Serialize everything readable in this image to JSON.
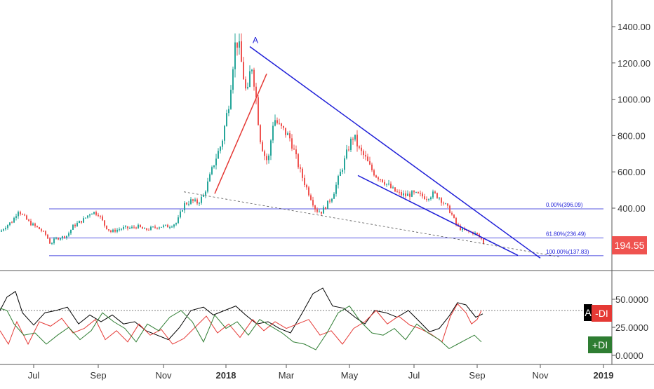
{
  "chart_data": {
    "type": "candlestick",
    "price_panel": {
      "y_ticks": [
        "1400.00",
        "1200.00",
        "1000.00",
        "800.00",
        "600.00",
        "400.00"
      ],
      "y_tick_values": [
        1400,
        1200,
        1000,
        800,
        600,
        400
      ],
      "last_price": "194.55",
      "last_price_value": 194.55,
      "annotation": "A",
      "fib_levels": [
        {
          "label": "0.00%(396.09)",
          "value": 396.09
        },
        {
          "label": "61.80%(236.49)",
          "value": 236.49
        },
        {
          "label": "100.00%(137.83)",
          "value": 137.83
        }
      ],
      "close_path": [
        [
          0,
          270
        ],
        [
          8,
          300
        ],
        [
          18,
          330
        ],
        [
          26,
          390
        ],
        [
          32,
          360
        ],
        [
          42,
          320
        ],
        [
          50,
          300
        ],
        [
          58,
          280
        ],
        [
          66,
          250
        ],
        [
          72,
          200
        ],
        [
          78,
          230
        ],
        [
          88,
          240
        ],
        [
          96,
          250
        ],
        [
          104,
          300
        ],
        [
          112,
          320
        ],
        [
          120,
          340
        ],
        [
          130,
          380
        ],
        [
          140,
          370
        ],
        [
          150,
          300
        ],
        [
          158,
          270
        ],
        [
          166,
          280
        ],
        [
          176,
          290
        ],
        [
          186,
          290
        ],
        [
          196,
          300
        ],
        [
          206,
          280
        ],
        [
          216,
          290
        ],
        [
          228,
          300
        ],
        [
          240,
          300
        ],
        [
          252,
          320
        ],
        [
          262,
          420
        ],
        [
          272,
          440
        ],
        [
          282,
          430
        ],
        [
          290,
          470
        ],
        [
          298,
          560
        ],
        [
          306,
          660
        ],
        [
          316,
          760
        ],
        [
          326,
          980
        ],
        [
          332,
          1200
        ],
        [
          336,
          1330
        ],
        [
          340,
          1300
        ],
        [
          346,
          1150
        ],
        [
          352,
          1000
        ],
        [
          358,
          1210
        ],
        [
          364,
          1050
        ],
        [
          370,
          800
        ],
        [
          376,
          700
        ],
        [
          382,
          650
        ],
        [
          390,
          900
        ],
        [
          398,
          850
        ],
        [
          406,
          820
        ],
        [
          414,
          780
        ],
        [
          420,
          700
        ],
        [
          428,
          600
        ],
        [
          436,
          520
        ],
        [
          444,
          450
        ],
        [
          450,
          390
        ],
        [
          458,
          380
        ],
        [
          466,
          420
        ],
        [
          474,
          470
        ],
        [
          482,
          560
        ],
        [
          490,
          650
        ],
        [
          498,
          750
        ],
        [
          504,
          800
        ],
        [
          512,
          720
        ],
        [
          520,
          680
        ],
        [
          528,
          620
        ],
        [
          536,
          580
        ],
        [
          544,
          560
        ],
        [
          552,
          530
        ],
        [
          560,
          500
        ],
        [
          568,
          480
        ],
        [
          578,
          470
        ],
        [
          588,
          480
        ],
        [
          598,
          470
        ],
        [
          608,
          460
        ],
        [
          618,
          480
        ],
        [
          626,
          460
        ],
        [
          634,
          420
        ],
        [
          642,
          380
        ],
        [
          650,
          310
        ],
        [
          658,
          280
        ],
        [
          668,
          270
        ],
        [
          678,
          260
        ],
        [
          686,
          230
        ],
        [
          690,
          200
        ]
      ]
    },
    "indicator_panel": {
      "y_ticks": [
        "50.0000",
        "25.0000",
        "0.0000"
      ],
      "y_tick_values": [
        50,
        25,
        0
      ],
      "reference_level": 40,
      "series": [
        {
          "name": "A",
          "color": "#000000",
          "values": [
            [
              0,
              40
            ],
            [
              10,
              52
            ],
            [
              22,
              57
            ],
            [
              32,
              38
            ],
            [
              48,
              27
            ],
            [
              64,
              38
            ],
            [
              80,
              40
            ],
            [
              96,
              43
            ],
            [
              112,
              28
            ],
            [
              128,
              36
            ],
            [
              144,
              30
            ],
            [
              160,
              36
            ],
            [
              176,
              28
            ],
            [
              192,
              30
            ],
            [
              208,
              22
            ],
            [
              224,
              18
            ],
            [
              240,
              14
            ],
            [
              256,
              25
            ],
            [
              272,
              40
            ],
            [
              290,
              43
            ],
            [
              304,
              36
            ],
            [
              320,
              40
            ],
            [
              336,
              44
            ],
            [
              350,
              36
            ],
            [
              366,
              28
            ],
            [
              382,
              30
            ],
            [
              398,
              24
            ],
            [
              414,
              20
            ],
            [
              430,
              37
            ],
            [
              446,
              55
            ],
            [
              460,
              60
            ],
            [
              474,
              44
            ],
            [
              490,
              42
            ],
            [
              506,
              34
            ],
            [
              520,
              28
            ],
            [
              534,
              40
            ],
            [
              550,
              38
            ],
            [
              566,
              34
            ],
            [
              582,
              40
            ],
            [
              598,
              30
            ],
            [
              612,
              21
            ],
            [
              626,
              24
            ],
            [
              640,
              35
            ],
            [
              652,
              47
            ],
            [
              664,
              45
            ],
            [
              678,
              34
            ],
            [
              688,
              37
            ]
          ]
        },
        {
          "name": "-DI",
          "color": "#e53935",
          "values": [
            [
              0,
              22
            ],
            [
              12,
              10
            ],
            [
              24,
              30
            ],
            [
              40,
              10
            ],
            [
              56,
              30
            ],
            [
              72,
              26
            ],
            [
              88,
              33
            ],
            [
              104,
              20
            ],
            [
              120,
              24
            ],
            [
              136,
              32
            ],
            [
              150,
              14
            ],
            [
              166,
              22
            ],
            [
              182,
              12
            ],
            [
              198,
              28
            ],
            [
              214,
              18
            ],
            [
              230,
              23
            ],
            [
              246,
              10
            ],
            [
              262,
              15
            ],
            [
              278,
              25
            ],
            [
              294,
              35
            ],
            [
              310,
              20
            ],
            [
              326,
              28
            ],
            [
              342,
              16
            ],
            [
              360,
              32
            ],
            [
              376,
              22
            ],
            [
              392,
              30
            ],
            [
              408,
              24
            ],
            [
              424,
              28
            ],
            [
              440,
              32
            ],
            [
              456,
              18
            ],
            [
              472,
              22
            ],
            [
              488,
              10
            ],
            [
              504,
              24
            ],
            [
              520,
              30
            ],
            [
              536,
              40
            ],
            [
              552,
              28
            ],
            [
              568,
              35
            ],
            [
              584,
              27
            ],
            [
              598,
              24
            ],
            [
              614,
              19
            ],
            [
              630,
              12
            ],
            [
              642,
              35
            ],
            [
              652,
              46
            ],
            [
              664,
              38
            ],
            [
              672,
              28
            ],
            [
              680,
              32
            ],
            [
              686,
              40
            ]
          ]
        },
        {
          "name": "+DI",
          "color": "#2e7d32",
          "values": [
            [
              0,
              42
            ],
            [
              10,
              40
            ],
            [
              20,
              28
            ],
            [
              34,
              18
            ],
            [
              50,
              20
            ],
            [
              66,
              10
            ],
            [
              82,
              18
            ],
            [
              98,
              25
            ],
            [
              114,
              14
            ],
            [
              130,
              22
            ],
            [
              146,
              38
            ],
            [
              162,
              30
            ],
            [
              178,
              24
            ],
            [
              194,
              12
            ],
            [
              210,
              28
            ],
            [
              226,
              22
            ],
            [
              242,
              34
            ],
            [
              258,
              40
            ],
            [
              274,
              30
            ],
            [
              290,
              12
            ],
            [
              306,
              36
            ],
            [
              322,
              24
            ],
            [
              338,
              30
            ],
            [
              354,
              18
            ],
            [
              370,
              32
            ],
            [
              386,
              26
            ],
            [
              402,
              20
            ],
            [
              418,
              12
            ],
            [
              434,
              10
            ],
            [
              450,
              5
            ],
            [
              466,
              20
            ],
            [
              482,
              38
            ],
            [
              498,
              44
            ],
            [
              514,
              30
            ],
            [
              530,
              20
            ],
            [
              546,
              18
            ],
            [
              562,
              24
            ],
            [
              578,
              14
            ],
            [
              594,
              28
            ],
            [
              610,
              20
            ],
            [
              626,
              14
            ],
            [
              640,
              6
            ],
            [
              652,
              10
            ],
            [
              664,
              14
            ],
            [
              676,
              18
            ],
            [
              686,
              12
            ]
          ]
        }
      ],
      "badges": [
        {
          "name": "A",
          "text": "A"
        },
        {
          "name": "-DI",
          "text": "-DI"
        },
        {
          "name": "+DI",
          "text": "+DI"
        }
      ]
    },
    "x_ticks": [
      "Jul",
      "Sep",
      "Nov",
      "2018",
      "Mar",
      "May",
      "Jul",
      "Sep",
      "Nov",
      "2019"
    ],
    "colors": {
      "up": "#26a69a",
      "down": "#ef5350",
      "trend": "#1f1fd8",
      "trend_red": "#e53935",
      "ref": "#555555",
      "grid": "#000000"
    },
    "grid": false,
    "legend": "badges at right edge of indicator panel"
  }
}
